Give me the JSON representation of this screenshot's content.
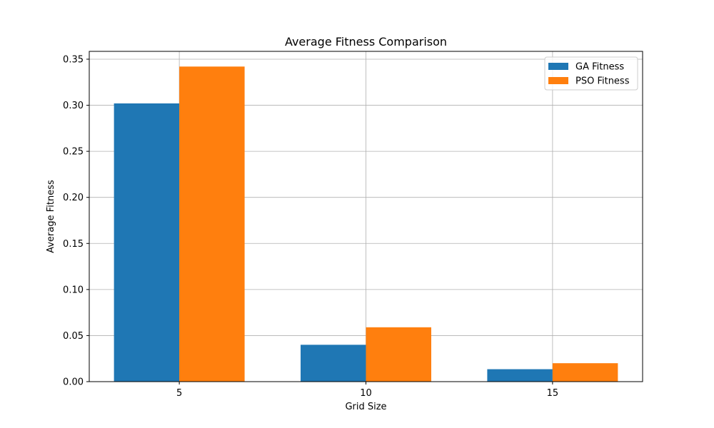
{
  "chart_data": {
    "type": "bar",
    "title": "Average Fitness Comparison",
    "xlabel": "Grid Size",
    "ylabel": "Average Fitness",
    "categories": [
      "5",
      "10",
      "15"
    ],
    "series": [
      {
        "name": "GA Fitness",
        "color": "#1f77b4",
        "values": [
          0.302,
          0.04,
          0.0135
        ]
      },
      {
        "name": "PSO Fitness",
        "color": "#ff7f0e",
        "values": [
          0.342,
          0.059,
          0.02
        ]
      }
    ],
    "ylim": [
      0,
      0.3585
    ],
    "yticks": [
      0.0,
      0.05,
      0.1,
      0.15,
      0.2,
      0.25,
      0.3,
      0.35
    ],
    "ytick_labels": [
      "0.00",
      "0.05",
      "0.10",
      "0.15",
      "0.20",
      "0.25",
      "0.30",
      "0.35"
    ],
    "grid": true,
    "legend_position": "top-right"
  }
}
